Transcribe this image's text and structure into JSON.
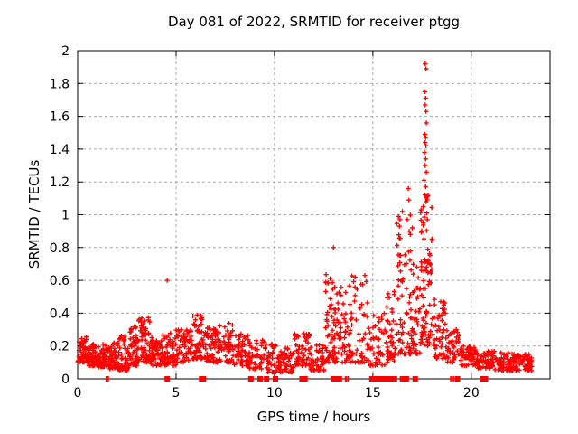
{
  "chart_data": {
    "type": "scatter",
    "title": "Day 081 of 2022, SRMTID for receiver ptgg",
    "xlabel": "GPS time / hours",
    "ylabel": "SRMTID / TECUs",
    "xlim": [
      0,
      24
    ],
    "ylim": [
      0,
      2
    ],
    "xticks": [
      0,
      5,
      10,
      15,
      20
    ],
    "xtick_labels": [
      "0",
      "5",
      "10",
      "15",
      "20"
    ],
    "yticks": [
      0,
      0.2,
      0.4,
      0.6,
      0.8,
      1,
      1.2,
      1.4,
      1.6,
      1.8,
      2
    ],
    "ytick_labels": [
      "0",
      "0.2",
      "0.4",
      "0.6",
      "0.8",
      "1",
      "1.2",
      "1.4",
      "1.6",
      "1.8",
      "2"
    ],
    "grid": true,
    "legend": "none",
    "marker": "plus",
    "marker_color": "#ff0000",
    "grid_color": "#a8a8a8",
    "axis_color": "#000000",
    "background_color": "#ffffff",
    "density_bands": [
      [
        0.0,
        0.5,
        0.1,
        0.26,
        55,
        1.4
      ],
      [
        0.5,
        1.0,
        0.08,
        0.23,
        55,
        1.5
      ],
      [
        1.0,
        1.6,
        0.07,
        0.21,
        55,
        1.5
      ],
      [
        1.6,
        2.1,
        0.06,
        0.22,
        50,
        1.5
      ],
      [
        2.1,
        2.6,
        0.05,
        0.27,
        50,
        1.5
      ],
      [
        2.6,
        3.1,
        0.08,
        0.34,
        55,
        1.5
      ],
      [
        3.1,
        3.7,
        0.1,
        0.38,
        60,
        1.4
      ],
      [
        3.7,
        4.3,
        0.08,
        0.26,
        55,
        1.5
      ],
      [
        4.3,
        5.0,
        0.08,
        0.28,
        55,
        1.5
      ],
      [
        5.0,
        5.7,
        0.1,
        0.31,
        55,
        1.4
      ],
      [
        5.7,
        6.4,
        0.12,
        0.39,
        60,
        1.4
      ],
      [
        6.4,
        7.1,
        0.1,
        0.31,
        55,
        1.5
      ],
      [
        7.1,
        7.9,
        0.1,
        0.34,
        60,
        1.4
      ],
      [
        7.9,
        8.7,
        0.08,
        0.28,
        55,
        1.5
      ],
      [
        8.7,
        9.5,
        0.06,
        0.24,
        50,
        1.5
      ],
      [
        9.5,
        10.3,
        0.04,
        0.22,
        50,
        1.5
      ],
      [
        10.3,
        11.0,
        0.04,
        0.19,
        45,
        1.5
      ],
      [
        11.0,
        11.8,
        0.08,
        0.29,
        55,
        1.5
      ],
      [
        11.8,
        12.6,
        0.05,
        0.21,
        45,
        1.5
      ],
      [
        12.6,
        13.2,
        0.1,
        0.66,
        65,
        1.6
      ],
      [
        13.2,
        13.9,
        0.1,
        0.58,
        50,
        1.6
      ],
      [
        13.9,
        14.8,
        0.1,
        0.64,
        50,
        1.7
      ],
      [
        14.8,
        15.6,
        0.08,
        0.4,
        45,
        1.6
      ],
      [
        15.6,
        16.2,
        0.1,
        0.55,
        45,
        1.6
      ],
      [
        16.2,
        17.0,
        0.15,
        1.0,
        70,
        1.7
      ],
      [
        17.0,
        17.4,
        0.15,
        0.7,
        35,
        1.5
      ],
      [
        17.4,
        18.1,
        0.2,
        1.12,
        85,
        1.5
      ],
      [
        18.1,
        18.7,
        0.12,
        0.5,
        45,
        1.6
      ],
      [
        18.7,
        19.5,
        0.1,
        0.3,
        45,
        1.5
      ],
      [
        19.5,
        20.3,
        0.08,
        0.2,
        55,
        1.3
      ],
      [
        20.3,
        21.2,
        0.06,
        0.17,
        65,
        1.3
      ],
      [
        21.2,
        22.2,
        0.05,
        0.16,
        70,
        1.3
      ],
      [
        22.2,
        23.1,
        0.05,
        0.15,
        70,
        1.3
      ]
    ],
    "outlier_points": [
      [
        4.55,
        0.6
      ],
      [
        13.0,
        0.8
      ],
      [
        16.35,
        0.93
      ],
      [
        16.5,
        1.02
      ],
      [
        16.8,
        1.16
      ],
      [
        16.83,
        1.09
      ],
      [
        16.9,
        0.88
      ],
      [
        17.0,
        0.92
      ],
      [
        17.45,
        1.03
      ],
      [
        17.66,
        1.92
      ],
      [
        17.7,
        1.89
      ],
      [
        17.64,
        1.75
      ],
      [
        17.68,
        1.71
      ],
      [
        17.66,
        1.67
      ],
      [
        17.7,
        1.63
      ],
      [
        17.72,
        1.56
      ],
      [
        17.64,
        1.49
      ],
      [
        17.68,
        1.47
      ],
      [
        17.66,
        1.44
      ],
      [
        17.7,
        1.42
      ],
      [
        17.62,
        1.38
      ],
      [
        17.68,
        1.34
      ],
      [
        17.66,
        1.3
      ],
      [
        17.72,
        1.26
      ],
      [
        17.6,
        1.21
      ],
      [
        17.68,
        1.17
      ],
      [
        17.64,
        1.12
      ],
      [
        17.7,
        1.08
      ],
      [
        17.56,
        1.05
      ],
      [
        17.74,
        1.01
      ]
    ],
    "zero_squares_x": [
      4.55,
      6.3,
      8.8,
      9.27,
      9.6,
      10.05,
      11.4,
      11.55,
      13.0,
      13.12,
      13.3,
      14.95,
      15.2,
      15.35,
      15.5,
      15.65,
      15.9,
      16.1,
      16.5,
      16.7,
      17.15,
      19.3,
      20.6,
      20.72
    ],
    "zero_ticks_x": [
      1.45,
      1.5,
      1.56,
      6.45,
      6.5,
      13.6,
      13.67,
      13.75,
      18.95,
      19.02,
      19.1
    ]
  }
}
